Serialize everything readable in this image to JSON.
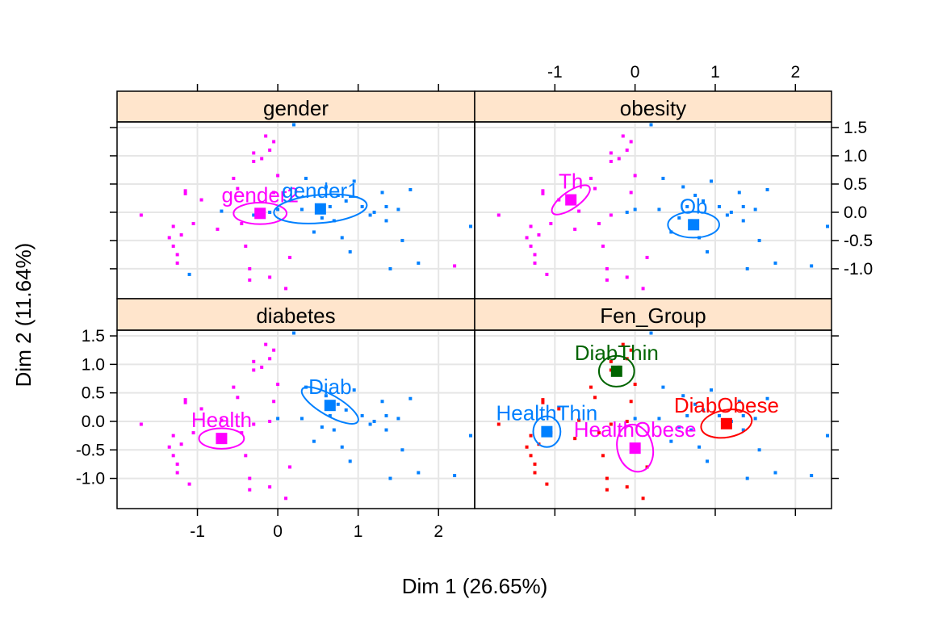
{
  "chart_data": {
    "type": "scatter",
    "xlabel": "Dim 1 (26.65%)",
    "ylabel": "Dim 2 (11.64%)",
    "xlim": [
      -2.0,
      2.45
    ],
    "ylim": [
      -1.53,
      1.6
    ],
    "x_ticks": [
      -1,
      0,
      1,
      2
    ],
    "x_tick_labels": [
      "-1",
      "0",
      "1",
      "2"
    ],
    "y_ticks": [
      1.5,
      1.0,
      0.5,
      0.0,
      -0.5,
      -1.0
    ],
    "y_tick_labels": [
      "1.5",
      "1.0",
      "0.5",
      "0.0",
      "-0.5",
      "-1.0"
    ],
    "grid": true,
    "colors": {
      "magenta": "#FF00FF",
      "blue": "#0080FF",
      "green": "#006400",
      "red": "#FF0000",
      "strip": "#FFE5CC",
      "grid": "#E6E6E6"
    },
    "points": [
      {
        "x": -1.7,
        "y": -0.05,
        "g": 0,
        "o": 0,
        "d": 0,
        "f": 1
      },
      {
        "x": -1.35,
        "y": -0.45,
        "g": 0,
        "o": 0,
        "d": 0,
        "f": 1
      },
      {
        "x": -1.3,
        "y": -0.25,
        "g": 0,
        "o": 0,
        "d": 0,
        "f": 1
      },
      {
        "x": -1.3,
        "y": -0.6,
        "g": 0,
        "o": 0,
        "d": 0,
        "f": 1
      },
      {
        "x": -1.25,
        "y": -0.75,
        "g": 0,
        "o": 0,
        "d": 0,
        "f": 1
      },
      {
        "x": -1.25,
        "y": -0.9,
        "g": 0,
        "o": 0,
        "d": 0,
        "f": 1
      },
      {
        "x": -1.2,
        "y": -0.4,
        "g": 0,
        "o": 0,
        "d": 0,
        "f": 1
      },
      {
        "x": -1.15,
        "y": 0.33,
        "g": 0,
        "o": 0,
        "d": 0,
        "f": 1
      },
      {
        "x": -1.15,
        "y": 0.38,
        "g": 0,
        "o": 0,
        "d": 0,
        "f": 1
      },
      {
        "x": -1.1,
        "y": -1.1,
        "g": 1,
        "o": 0,
        "d": 0,
        "f": 1
      },
      {
        "x": -1.05,
        "y": -0.2,
        "g": 0,
        "o": 0,
        "d": 0,
        "f": 1
      },
      {
        "x": -0.95,
        "y": 0.22,
        "g": 0,
        "o": 0,
        "d": 0,
        "f": 1
      },
      {
        "x": -0.7,
        "y": 0.02,
        "g": 1,
        "o": 0,
        "d": 0,
        "f": 1
      },
      {
        "x": -0.55,
        "y": 0.6,
        "g": 0,
        "o": 0,
        "d": 0,
        "f": 1
      },
      {
        "x": -0.5,
        "y": 0.42,
        "g": 0,
        "o": 0,
        "d": 0,
        "f": 1
      },
      {
        "x": -0.45,
        "y": -0.2,
        "g": 0,
        "o": 0,
        "d": 0,
        "f": 1
      },
      {
        "x": -0.4,
        "y": -0.6,
        "g": 0,
        "o": 0,
        "d": 0,
        "f": 1
      },
      {
        "x": -0.35,
        "y": -1.0,
        "g": 0,
        "o": 0,
        "d": 0,
        "f": 1
      },
      {
        "x": -0.35,
        "y": -1.2,
        "g": 0,
        "o": 0,
        "d": 0,
        "f": 1
      },
      {
        "x": -0.3,
        "y": 0.9,
        "g": 0,
        "o": 0,
        "d": 0,
        "f": 1
      },
      {
        "x": -0.3,
        "y": 1.05,
        "g": 0,
        "o": 0,
        "d": 0,
        "f": 1
      },
      {
        "x": -0.2,
        "y": 0.95,
        "g": 0,
        "o": 0,
        "d": 0,
        "f": 1
      },
      {
        "x": -0.15,
        "y": 1.35,
        "g": 0,
        "o": 0,
        "d": 0,
        "f": 1
      },
      {
        "x": -0.1,
        "y": 1.1,
        "g": 0,
        "o": 0,
        "d": 0,
        "f": 1
      },
      {
        "x": -0.05,
        "y": 1.25,
        "g": 0,
        "o": 0,
        "d": 0,
        "f": 1
      },
      {
        "x": -0.05,
        "y": 0.35,
        "g": 0,
        "o": 0,
        "d": 0,
        "f": 1
      },
      {
        "x": 0.0,
        "y": 0.65,
        "g": 0,
        "o": 0,
        "d": 0,
        "f": 1
      },
      {
        "x": -0.1,
        "y": -1.15,
        "g": 0,
        "o": 0,
        "d": 0,
        "f": 1
      },
      {
        "x": 0.1,
        "y": -1.35,
        "g": 0,
        "o": 0,
        "d": 0,
        "f": 1
      },
      {
        "x": 0.15,
        "y": -0.8,
        "g": 0,
        "o": 0,
        "d": 0,
        "f": 1
      },
      {
        "x": 0.2,
        "y": 1.55,
        "g": 1,
        "o": 1,
        "d": 1,
        "f": 0
      },
      {
        "x": -0.3,
        "y": -0.05,
        "g": 1,
        "o": 0,
        "d": 0,
        "f": 1
      },
      {
        "x": 0.3,
        "y": 0.05,
        "g": 1,
        "o": 1,
        "d": 1,
        "f": 0
      },
      {
        "x": 0.35,
        "y": 0.6,
        "g": 1,
        "o": 1,
        "d": 1,
        "f": 0
      },
      {
        "x": 0.45,
        "y": -0.35,
        "g": 1,
        "o": 1,
        "d": 1,
        "f": 0
      },
      {
        "x": 0.55,
        "y": -0.1,
        "g": 1,
        "o": 1,
        "d": 1,
        "f": 0
      },
      {
        "x": 0.6,
        "y": 0.45,
        "g": 1,
        "o": 1,
        "d": 1,
        "f": 0
      },
      {
        "x": 0.65,
        "y": 0.1,
        "g": 1,
        "o": 1,
        "d": 1,
        "f": 0
      },
      {
        "x": 0.7,
        "y": -0.15,
        "g": 1,
        "o": 1,
        "d": 1,
        "f": 0
      },
      {
        "x": 0.75,
        "y": 0.3,
        "g": 1,
        "o": 1,
        "d": 1,
        "f": 0
      },
      {
        "x": 0.8,
        "y": -0.45,
        "g": 1,
        "o": 1,
        "d": 1,
        "f": 0
      },
      {
        "x": 0.85,
        "y": 0.2,
        "g": 1,
        "o": 1,
        "d": 1,
        "f": 0
      },
      {
        "x": 0.9,
        "y": -0.7,
        "g": 1,
        "o": 1,
        "d": 1,
        "f": 0
      },
      {
        "x": 0.95,
        "y": 0.55,
        "g": 1,
        "o": 1,
        "d": 1,
        "f": 0
      },
      {
        "x": 1.05,
        "y": 0.1,
        "g": 1,
        "o": 1,
        "d": 1,
        "f": 0
      },
      {
        "x": 1.15,
        "y": -0.05,
        "g": 1,
        "o": 1,
        "d": 1,
        "f": 0
      },
      {
        "x": 1.2,
        "y": 0.0,
        "g": 1,
        "o": 1,
        "d": 1,
        "f": 0
      },
      {
        "x": 1.3,
        "y": 0.35,
        "g": 1,
        "o": 1,
        "d": 1,
        "f": 0
      },
      {
        "x": 1.35,
        "y": 0.1,
        "g": 1,
        "o": 1,
        "d": 1,
        "f": 0
      },
      {
        "x": 1.35,
        "y": -0.15,
        "g": 1,
        "o": 1,
        "d": 1,
        "f": 0
      },
      {
        "x": 1.4,
        "y": -1.0,
        "g": 1,
        "o": 1,
        "d": 1,
        "f": 0
      },
      {
        "x": 1.5,
        "y": 0.05,
        "g": 1,
        "o": 1,
        "d": 1,
        "f": 0
      },
      {
        "x": 1.65,
        "y": 0.4,
        "g": 1,
        "o": 1,
        "d": 1,
        "f": 0
      },
      {
        "x": 1.75,
        "y": -0.9,
        "g": 1,
        "o": 1,
        "d": 1,
        "f": 0
      },
      {
        "x": 2.2,
        "y": -0.95,
        "g": 0,
        "o": 1,
        "d": 1,
        "f": 0
      },
      {
        "x": 2.4,
        "y": -0.25,
        "g": 1,
        "o": 1,
        "d": 1,
        "f": 0
      },
      {
        "x": 1.55,
        "y": -0.5,
        "g": 1,
        "o": 1,
        "d": 1,
        "f": 0
      },
      {
        "x": 0.0,
        "y": 0.05,
        "g": 1,
        "o": 1,
        "d": 1,
        "f": 0
      },
      {
        "x": -0.1,
        "y": 0.0,
        "g": 1,
        "o": 1,
        "d": 0,
        "f": 1
      },
      {
        "x": -0.75,
        "y": -0.3,
        "g": 0,
        "o": 0,
        "d": 0,
        "f": 1
      }
    ],
    "panels": [
      {
        "strip": "gender",
        "categories": [
          {
            "label": "gender2",
            "x": -0.22,
            "y": -0.02,
            "rx": 0.33,
            "ry": 0.19,
            "angle": 0,
            "color": "#FF00FF"
          },
          {
            "label": "gender1",
            "x": 0.53,
            "y": 0.06,
            "rx": 0.58,
            "ry": 0.25,
            "angle": 5,
            "color": "#0080FF"
          }
        ]
      },
      {
        "strip": "obesity",
        "categories": [
          {
            "label": "Th",
            "x": -0.8,
            "y": 0.22,
            "rx": 0.28,
            "ry": 0.15,
            "angle": 35,
            "color": "#FF00FF"
          },
          {
            "label": "Ob",
            "x": 0.73,
            "y": -0.22,
            "rx": 0.32,
            "ry": 0.23,
            "angle": 0,
            "color": "#0080FF"
          }
        ]
      },
      {
        "strip": "diabetes",
        "categories": [
          {
            "label": "Health",
            "x": -0.7,
            "y": -0.3,
            "rx": 0.28,
            "ry": 0.18,
            "angle": 0,
            "color": "#FF00FF"
          },
          {
            "label": "Diab",
            "x": 0.65,
            "y": 0.28,
            "rx": 0.4,
            "ry": 0.18,
            "angle": -30,
            "color": "#0080FF"
          }
        ]
      },
      {
        "strip": "Fen_Group",
        "categories": [
          {
            "label": "DiabThin",
            "x": -0.23,
            "y": 0.88,
            "rx": 0.22,
            "ry": 0.27,
            "angle": 0,
            "color": "#006400"
          },
          {
            "label": "HealthThin",
            "x": -1.1,
            "y": -0.18,
            "rx": 0.17,
            "ry": 0.27,
            "angle": 0,
            "color": "#0080FF"
          },
          {
            "label": "HealthObese",
            "x": 0.0,
            "y": -0.47,
            "rx": 0.22,
            "ry": 0.42,
            "angle": 15,
            "color": "#FF00FF"
          },
          {
            "label": "DiabObese",
            "x": 1.14,
            "y": -0.04,
            "rx": 0.32,
            "ry": 0.24,
            "angle": 10,
            "color": "#FF0000"
          }
        ]
      }
    ]
  }
}
